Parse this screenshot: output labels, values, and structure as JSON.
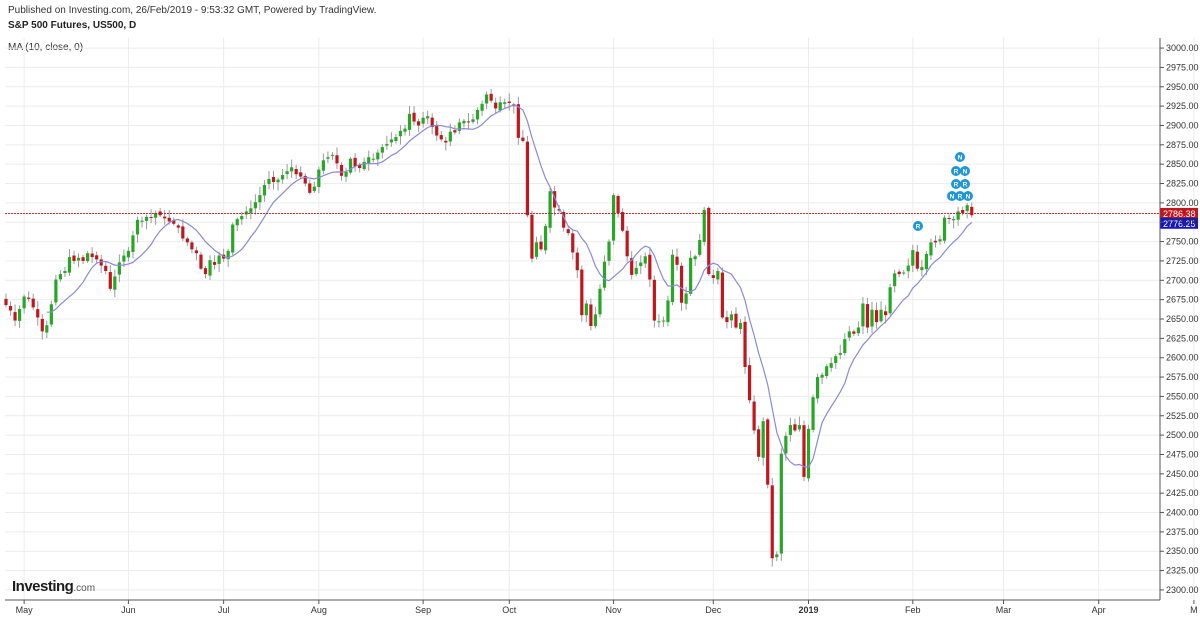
{
  "header": {
    "published": "Published on Investing.com, 26/Feb/2019 - 9:53:32 GMT, Powered by TradingView.",
    "title": "S&P 500 Futures, US500, D",
    "indicator": "MA (10, close, 0)"
  },
  "logo": {
    "brand": "Investing",
    "suffix": ".com"
  },
  "colors": {
    "up": "#26a826",
    "down": "#c0161d",
    "ma": "#8a8ad6",
    "price_line": "#c0161d",
    "ma_badge": "#1515c8",
    "event_badge": "#2196d6",
    "grid": "#ececec"
  },
  "chart_data": {
    "type": "candlestick",
    "title": "S&P 500 Futures, US500, D",
    "ylim": [
      2287,
      3013
    ],
    "y_ticks": [
      2300,
      2325,
      2350,
      2375,
      2400,
      2425,
      2450,
      2475,
      2500,
      2525,
      2550,
      2575,
      2600,
      2625,
      2650,
      2675,
      2700,
      2725,
      2750,
      2775,
      2800,
      2825,
      2850,
      2875,
      2900,
      2925,
      2950,
      2975,
      3000
    ],
    "x_ticks": [
      {
        "label": "May",
        "index": 4
      },
      {
        "label": "Jun",
        "index": 27
      },
      {
        "label": "Jul",
        "index": 48
      },
      {
        "label": "Aug",
        "index": 69
      },
      {
        "label": "Sep",
        "index": 92
      },
      {
        "label": "Oct",
        "index": 111
      },
      {
        "label": "Nov",
        "index": 134
      },
      {
        "label": "Dec",
        "index": 156
      },
      {
        "label": "2019",
        "index": 177,
        "bold": true
      },
      {
        "label": "Feb",
        "index": 200
      },
      {
        "label": "Mar",
        "index": 220
      },
      {
        "label": "Apr",
        "index": 241
      },
      {
        "label": "M",
        "index": 262
      }
    ],
    "closes": [
      2668,
      2661,
      2648,
      2663,
      2679,
      2676,
      2665,
      2652,
      2634,
      2642,
      2669,
      2701,
      2708,
      2712,
      2730,
      2725,
      2729,
      2725,
      2735,
      2730,
      2727,
      2719,
      2712,
      2689,
      2705,
      2723,
      2732,
      2738,
      2758,
      2778,
      2777,
      2782,
      2781,
      2787,
      2784,
      2780,
      2776,
      2773,
      2768,
      2754,
      2749,
      2740,
      2735,
      2715,
      2708,
      2726,
      2720,
      2732,
      2728,
      2738,
      2772,
      2779,
      2783,
      2789,
      2793,
      2801,
      2810,
      2823,
      2831,
      2827,
      2830,
      2836,
      2841,
      2846,
      2837,
      2834,
      2825,
      2813,
      2821,
      2843,
      2855,
      2859,
      2862,
      2851,
      2835,
      2840,
      2857,
      2847,
      2845,
      2853,
      2859,
      2857,
      2865,
      2872,
      2876,
      2882,
      2885,
      2893,
      2896,
      2915,
      2905,
      2900,
      2910,
      2912,
      2898,
      2887,
      2882,
      2878,
      2892,
      2891,
      2904,
      2906,
      2904,
      2908,
      2920,
      2928,
      2940,
      2932,
      2922,
      2930,
      2930,
      2929,
      2925,
      2884,
      2880,
      2784,
      2728,
      2749,
      2740,
      2770,
      2815,
      2794,
      2790,
      2768,
      2761,
      2736,
      2713,
      2655,
      2670,
      2641,
      2656,
      2689,
      2724,
      2750,
      2810,
      2787,
      2764,
      2731,
      2707,
      2716,
      2723,
      2731,
      2701,
      2648,
      2647,
      2648,
      2674,
      2733,
      2720,
      2671,
      2683,
      2729,
      2731,
      2752,
      2791,
      2708,
      2703,
      2712,
      2652,
      2646,
      2656,
      2639,
      2645,
      2588,
      2545,
      2506,
      2472,
      2518,
      2436,
      2341,
      2346,
      2476,
      2499,
      2513,
      2506,
      2513,
      2446,
      2508,
      2549,
      2575,
      2578,
      2589,
      2593,
      2602,
      2606,
      2624,
      2634,
      2631,
      2639,
      2670,
      2639,
      2662,
      2646,
      2662,
      2655,
      2691,
      2709,
      2708,
      2710,
      2719,
      2739,
      2715,
      2717,
      2734,
      2749,
      2749,
      2753,
      2781,
      2780,
      2779,
      2789,
      2787,
      2797,
      2784
    ]
  },
  "price_labels": {
    "last": "2786.38",
    "ma": "2776.25"
  },
  "event_badges": [
    "N",
    "R",
    "N",
    "R",
    "R",
    "N",
    "R",
    "N",
    "R"
  ]
}
